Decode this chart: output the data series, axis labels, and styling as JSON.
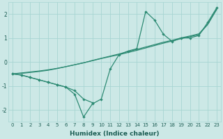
{
  "x_main": [
    0,
    1,
    2,
    3,
    4,
    5,
    6,
    7,
    8,
    9,
    10,
    11,
    12,
    13,
    14,
    15,
    16,
    17,
    18,
    19,
    20,
    21,
    22,
    23
  ],
  "line_dotted_marked": [
    -0.5,
    -0.55,
    -0.65,
    -0.75,
    -0.85,
    -0.95,
    -1.05,
    -1.35,
    -2.3,
    -1.75,
    -1.55,
    -0.3,
    0.3,
    0.45,
    0.55,
    2.1,
    1.75,
    1.15,
    0.85,
    1.0,
    1.0,
    1.1,
    1.65,
    2.25
  ],
  "line_solid_marked": [
    -0.5,
    -0.55,
    -0.65,
    -0.75,
    -0.85,
    -0.95,
    -1.05,
    -1.2,
    -1.55,
    -1.7,
    null,
    null,
    null,
    null,
    null,
    null,
    null,
    null,
    null,
    null,
    null,
    null,
    null,
    null
  ],
  "line_straight1": [
    -0.5,
    -0.48,
    -0.44,
    -0.4,
    -0.35,
    -0.28,
    -0.2,
    -0.12,
    -0.04,
    0.06,
    0.15,
    0.24,
    0.33,
    0.43,
    0.52,
    0.62,
    0.72,
    0.82,
    0.9,
    1.0,
    1.08,
    1.17,
    1.58,
    2.2
  ],
  "line_straight2": [
    -0.5,
    -0.46,
    -0.42,
    -0.38,
    -0.33,
    -0.27,
    -0.2,
    -0.12,
    -0.04,
    0.05,
    0.14,
    0.22,
    0.3,
    0.39,
    0.48,
    0.58,
    0.68,
    0.78,
    0.87,
    0.97,
    1.05,
    1.14,
    1.56,
    2.18
  ],
  "color": "#2e8b74",
  "bg_color": "#cce8e6",
  "grid_color": "#a8d5d2",
  "xlabel": "Humidex (Indice chaleur)",
  "xlim": [
    -0.5,
    23.5
  ],
  "ylim": [
    -2.5,
    2.5
  ],
  "yticks": [
    -2,
    -1,
    0,
    1,
    2
  ],
  "xticks": [
    0,
    1,
    2,
    3,
    4,
    5,
    6,
    7,
    8,
    9,
    10,
    11,
    12,
    13,
    14,
    15,
    16,
    17,
    18,
    19,
    20,
    21,
    22,
    23
  ]
}
